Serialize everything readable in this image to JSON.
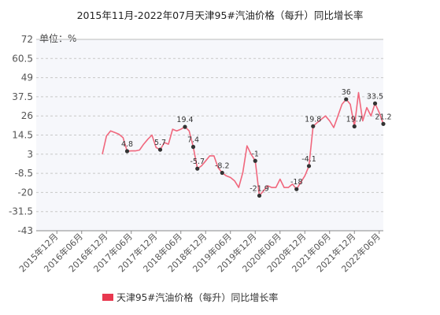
{
  "chart_data": {
    "type": "line",
    "title": "2015年11月-2022年07月天津95#汽油价格（每升）同比增长率",
    "unit_label": "单位：%",
    "xlabel": "",
    "ylabel": "",
    "ylim": [
      -43,
      72
    ],
    "yticks": [
      72,
      60.5,
      49,
      37.5,
      26,
      14.5,
      3,
      -8.5,
      -20,
      -31.5,
      -43
    ],
    "x_start": "2015-07",
    "x_end": "2022-07",
    "xtick_labels": [
      "2015年12月",
      "2016年06月",
      "2016年12月",
      "2017年06月",
      "2017年12月",
      "2018年06月",
      "2018年12月",
      "2019年06月",
      "2019年12月",
      "2020年06月",
      "2020年12月",
      "2021年06月",
      "2021年12月",
      "2022年06月"
    ],
    "xtick_months": [
      "2015-12",
      "2016-06",
      "2016-12",
      "2017-06",
      "2017-12",
      "2018-06",
      "2018-12",
      "2019-06",
      "2019-12",
      "2020-06",
      "2020-12",
      "2021-06",
      "2021-12",
      "2022-06"
    ],
    "grid": true,
    "legend": "bottom",
    "series": [
      {
        "name": "天津95#汽油价格（每升）同比增长率",
        "color": "#f0677d",
        "marker_color": "#333333",
        "points": [
          {
            "x": "2016-11",
            "y": 3
          },
          {
            "x": "2016-12",
            "y": 14
          },
          {
            "x": "2017-01",
            "y": 17
          },
          {
            "x": "2017-02",
            "y": 16
          },
          {
            "x": "2017-03",
            "y": 15
          },
          {
            "x": "2017-04",
            "y": 13
          },
          {
            "x": "2017-05",
            "y": 4.8,
            "label": "4.8"
          },
          {
            "x": "2017-06",
            "y": 5
          },
          {
            "x": "2017-07",
            "y": 5
          },
          {
            "x": "2017-08",
            "y": 5.5
          },
          {
            "x": "2017-09",
            "y": 9
          },
          {
            "x": "2017-10",
            "y": 12
          },
          {
            "x": "2017-11",
            "y": 14.5
          },
          {
            "x": "2017-12",
            "y": 7
          },
          {
            "x": "2018-01",
            "y": 5.7,
            "label": "5.7"
          },
          {
            "x": "2018-02",
            "y": 10
          },
          {
            "x": "2018-03",
            "y": 9
          },
          {
            "x": "2018-04",
            "y": 18
          },
          {
            "x": "2018-05",
            "y": 17
          },
          {
            "x": "2018-06",
            "y": 18
          },
          {
            "x": "2018-07",
            "y": 19.4,
            "label": "19.4"
          },
          {
            "x": "2018-08",
            "y": 17
          },
          {
            "x": "2018-09",
            "y": 7.4,
            "label": "7.4"
          },
          {
            "x": "2018-10",
            "y": -5.7,
            "label": "-5.7"
          },
          {
            "x": "2018-11",
            "y": -4
          },
          {
            "x": "2018-12",
            "y": -1
          },
          {
            "x": "2019-01",
            "y": 2
          },
          {
            "x": "2019-02",
            "y": 2
          },
          {
            "x": "2019-03",
            "y": -5
          },
          {
            "x": "2019-04",
            "y": -8.2,
            "label": "-8.2"
          },
          {
            "x": "2019-05",
            "y": -10
          },
          {
            "x": "2019-06",
            "y": -11
          },
          {
            "x": "2019-07",
            "y": -13
          },
          {
            "x": "2019-08",
            "y": -17
          },
          {
            "x": "2019-09",
            "y": -8
          },
          {
            "x": "2019-10",
            "y": 8
          },
          {
            "x": "2019-11",
            "y": 3
          },
          {
            "x": "2019-12",
            "y": -1,
            "label": "-1"
          },
          {
            "x": "2020-01",
            "y": -21.9,
            "label": "-21.9"
          },
          {
            "x": "2020-02",
            "y": -19
          },
          {
            "x": "2020-03",
            "y": -16
          },
          {
            "x": "2020-04",
            "y": -17
          },
          {
            "x": "2020-05",
            "y": -17
          },
          {
            "x": "2020-06",
            "y": -12
          },
          {
            "x": "2020-07",
            "y": -17
          },
          {
            "x": "2020-08",
            "y": -17
          },
          {
            "x": "2020-09",
            "y": -15
          },
          {
            "x": "2020-10",
            "y": -18,
            "label": "-18"
          },
          {
            "x": "2020-11",
            "y": -14
          },
          {
            "x": "2020-12",
            "y": -10
          },
          {
            "x": "2021-01",
            "y": -4.1,
            "label": "-4.1"
          },
          {
            "x": "2021-02",
            "y": 19.8,
            "label": "19.8"
          },
          {
            "x": "2021-03",
            "y": 22
          },
          {
            "x": "2021-04",
            "y": 24
          },
          {
            "x": "2021-05",
            "y": 26
          },
          {
            "x": "2021-06",
            "y": 23
          },
          {
            "x": "2021-07",
            "y": 19
          },
          {
            "x": "2021-08",
            "y": 26
          },
          {
            "x": "2021-09",
            "y": 33
          },
          {
            "x": "2021-10",
            "y": 36,
            "label": "36"
          },
          {
            "x": "2021-11",
            "y": 33
          },
          {
            "x": "2021-12",
            "y": 19.7,
            "label": "19.7"
          },
          {
            "x": "2022-01",
            "y": 40
          },
          {
            "x": "2022-02",
            "y": 23
          },
          {
            "x": "2022-03",
            "y": 31
          },
          {
            "x": "2022-04",
            "y": 26
          },
          {
            "x": "2022-05",
            "y": 33.5,
            "label": "33.5"
          },
          {
            "x": "2022-06",
            "y": 28
          },
          {
            "x": "2022-07",
            "y": 21.2,
            "label": "21.2"
          }
        ]
      }
    ]
  }
}
